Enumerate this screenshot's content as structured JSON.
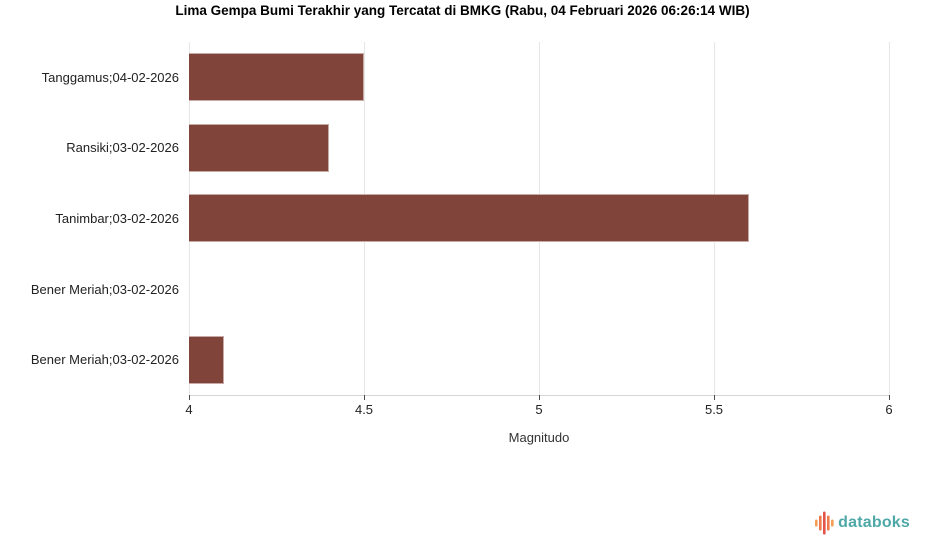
{
  "title": "Lima Gempa Bumi Terakhir yang Tercatat di BMKG (Rabu, 04 Februari 2026 06:26:14 WIB)",
  "chart_data": {
    "type": "bar",
    "orientation": "horizontal",
    "categories": [
      "Tanggamus;04-02-2026",
      "Ransiki;03-02-2026",
      "Tanimbar;03-02-2026",
      "Bener Meriah;03-02-2026",
      "Bener Meriah;03-02-2026"
    ],
    "values": [
      4.5,
      4.4,
      5.6,
      4.0,
      4.1
    ],
    "title": "Lima Gempa Bumi Terakhir yang Tercatat di BMKG (Rabu, 04 Februari 2026 06:26:14 WIB)",
    "xlabel": "Magnitudo",
    "ylabel": "",
    "xlim": [
      4,
      6
    ],
    "xticks": [
      4,
      4.5,
      5,
      5.5,
      6
    ],
    "bar_color": "#81443b",
    "gridline_color": "#e6e6e6",
    "grid": true,
    "legend": "none"
  },
  "branding": {
    "logo_text": "databoks",
    "logo_text_color": "#4fa8a8",
    "logo_icon_colors": [
      "#f59d52",
      "#ef7a4c",
      "#e35348",
      "#ef7a4c",
      "#f59d52"
    ]
  }
}
